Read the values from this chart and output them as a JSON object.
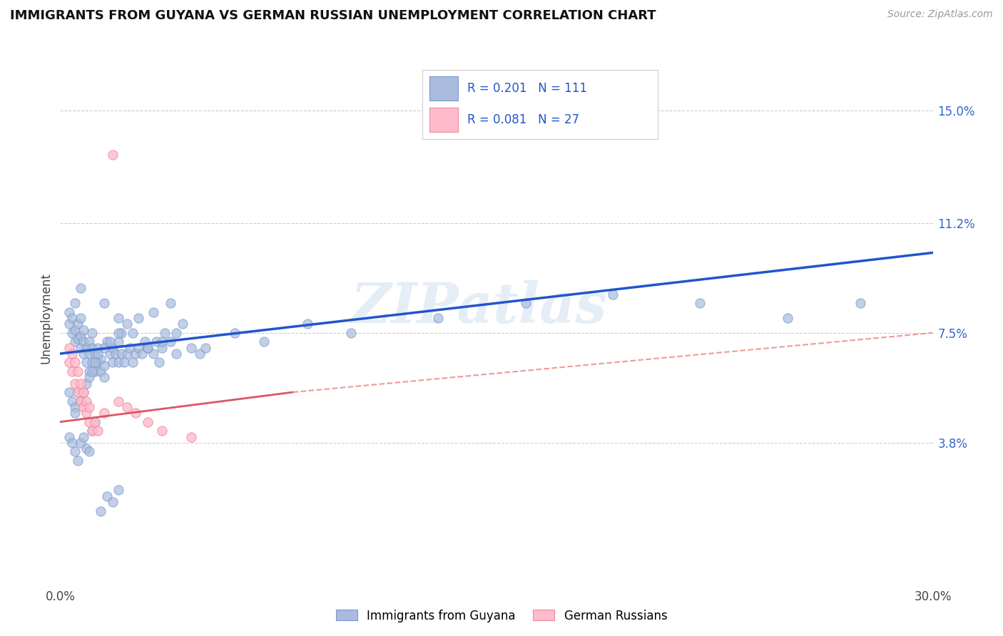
{
  "title": "IMMIGRANTS FROM GUYANA VS GERMAN RUSSIAN UNEMPLOYMENT CORRELATION CHART",
  "source_text": "Source: ZipAtlas.com",
  "ylabel": "Unemployment",
  "xlim": [
    0,
    30
  ],
  "ylim": [
    -1,
    17
  ],
  "xtick_labels": [
    "0.0%",
    "30.0%"
  ],
  "xtick_positions": [
    0,
    30
  ],
  "ytick_positions": [
    3.8,
    7.5,
    11.2,
    15.0
  ],
  "ytick_labels": [
    "3.8%",
    "7.5%",
    "11.2%",
    "15.0%"
  ],
  "grid_color": "#cccccc",
  "background_color": "#ffffff",
  "blue_marker_color": "#aabbdd",
  "blue_marker_edge": "#7799cc",
  "pink_marker_color": "#ffbbcc",
  "pink_marker_edge": "#ee8899",
  "blue_line_color": "#2255cc",
  "pink_line_color": "#dd5566",
  "pink_line_dash_color": "#ee9999",
  "watermark_text": "ZIPatlas",
  "legend_r1": "R = 0.201",
  "legend_n1": "N = 111",
  "legend_r2": "R = 0.081",
  "legend_n2": "N = 27",
  "legend_label1": "Immigrants from Guyana",
  "legend_label2": "German Russians",
  "blue_scatter_x": [
    0.3,
    0.3,
    0.4,
    0.4,
    0.5,
    0.5,
    0.5,
    0.6,
    0.6,
    0.7,
    0.7,
    0.7,
    0.7,
    0.8,
    0.8,
    0.8,
    0.9,
    0.9,
    1.0,
    1.0,
    1.0,
    1.1,
    1.1,
    1.1,
    1.2,
    1.2,
    1.3,
    1.3,
    1.4,
    1.4,
    1.5,
    1.5,
    1.6,
    1.7,
    1.8,
    1.8,
    1.9,
    2.0,
    2.0,
    2.1,
    2.1,
    2.2,
    2.3,
    2.4,
    2.5,
    2.6,
    2.7,
    2.8,
    2.9,
    3.0,
    3.2,
    3.3,
    3.4,
    3.5,
    3.6,
    3.8,
    4.0,
    4.2,
    4.5,
    4.8,
    1.5,
    2.0,
    2.5,
    3.0,
    3.5,
    4.0,
    5.0,
    6.0,
    7.0,
    8.5,
    10.0,
    13.0,
    16.0,
    19.0,
    22.0,
    25.0,
    27.5,
    0.3,
    0.4,
    0.5,
    0.5,
    0.6,
    0.7,
    0.8,
    0.9,
    1.0,
    1.1,
    1.2,
    1.3,
    1.5,
    1.7,
    2.0,
    2.3,
    2.7,
    3.2,
    3.8,
    0.3,
    0.4,
    0.5,
    0.6,
    0.7,
    0.8,
    0.9,
    1.0,
    1.1,
    1.2,
    1.4,
    1.6,
    1.8,
    2.0
  ],
  "blue_scatter_y": [
    7.8,
    8.2,
    7.5,
    8.0,
    7.2,
    7.6,
    8.5,
    7.3,
    7.8,
    7.0,
    7.4,
    8.0,
    9.0,
    6.8,
    7.2,
    7.6,
    6.5,
    7.0,
    6.2,
    6.8,
    7.2,
    6.5,
    7.0,
    7.5,
    6.2,
    6.8,
    6.5,
    7.0,
    6.2,
    6.6,
    6.0,
    6.4,
    7.2,
    6.8,
    6.5,
    7.0,
    6.8,
    6.5,
    7.2,
    6.8,
    7.5,
    6.5,
    6.8,
    7.0,
    6.5,
    6.8,
    7.0,
    6.8,
    7.2,
    7.0,
    6.8,
    7.2,
    6.5,
    7.0,
    7.5,
    7.2,
    7.5,
    7.8,
    7.0,
    6.8,
    8.5,
    8.0,
    7.5,
    7.0,
    7.2,
    6.8,
    7.0,
    7.5,
    7.2,
    7.8,
    7.5,
    8.0,
    8.5,
    8.8,
    8.5,
    8.0,
    8.5,
    5.5,
    5.2,
    5.0,
    4.8,
    5.5,
    5.2,
    5.5,
    5.8,
    6.0,
    6.2,
    6.5,
    6.8,
    7.0,
    7.2,
    7.5,
    7.8,
    8.0,
    8.2,
    8.5,
    4.0,
    3.8,
    3.5,
    3.2,
    3.8,
    4.0,
    3.6,
    3.5,
    4.2,
    4.5,
    1.5,
    2.0,
    1.8,
    2.2
  ],
  "pink_scatter_x": [
    0.3,
    0.3,
    0.4,
    0.4,
    0.5,
    0.5,
    0.6,
    0.6,
    0.7,
    0.7,
    0.8,
    0.8,
    0.9,
    0.9,
    1.0,
    1.0,
    1.1,
    1.2,
    1.3,
    1.5,
    1.8,
    2.0,
    2.3,
    2.6,
    3.0,
    3.5,
    4.5
  ],
  "pink_scatter_y": [
    6.5,
    7.0,
    6.2,
    6.8,
    5.8,
    6.5,
    5.5,
    6.2,
    5.2,
    5.8,
    5.0,
    5.5,
    4.8,
    5.2,
    4.5,
    5.0,
    4.2,
    4.5,
    4.2,
    4.8,
    13.5,
    5.2,
    5.0,
    4.8,
    4.5,
    4.2,
    4.0
  ],
  "blue_line_x0": 0,
  "blue_line_x1": 30,
  "blue_line_y0": 6.8,
  "blue_line_y1": 10.2,
  "pink_solid_x0": 0,
  "pink_solid_x1": 8,
  "pink_solid_y0": 4.5,
  "pink_solid_y1": 5.5,
  "pink_dash_x0": 8,
  "pink_dash_x1": 30,
  "pink_dash_y0": 5.5,
  "pink_dash_y1": 7.5
}
